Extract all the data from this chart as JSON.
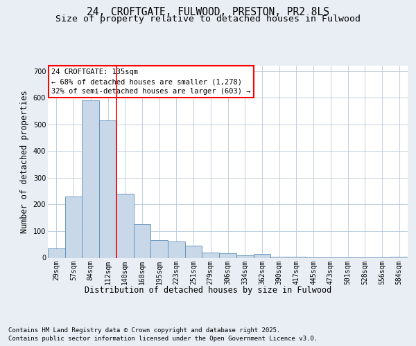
{
  "title_line1": "24, CROFTGATE, FULWOOD, PRESTON, PR2 8LS",
  "title_line2": "Size of property relative to detached houses in Fulwood",
  "xlabel": "Distribution of detached houses by size in Fulwood",
  "ylabel": "Number of detached properties",
  "bar_color": "#c8d8e8",
  "bar_edge_color": "#5b8db8",
  "vline_color": "red",
  "vline_index": 3.5,
  "annotation_title": "24 CROFTGATE: 135sqm",
  "annotation_line1": "← 68% of detached houses are smaller (1,278)",
  "annotation_line2": "32% of semi-detached houses are larger (603) →",
  "annotation_box_color": "red",
  "categories": [
    "29sqm",
    "57sqm",
    "84sqm",
    "112sqm",
    "140sqm",
    "168sqm",
    "195sqm",
    "223sqm",
    "251sqm",
    "279sqm",
    "306sqm",
    "334sqm",
    "362sqm",
    "390sqm",
    "417sqm",
    "445sqm",
    "473sqm",
    "501sqm",
    "528sqm",
    "556sqm",
    "584sqm"
  ],
  "values": [
    35,
    230,
    590,
    515,
    240,
    125,
    65,
    62,
    45,
    20,
    18,
    10,
    15,
    5,
    4,
    2,
    2,
    1,
    1,
    1,
    3
  ],
  "ylim": [
    0,
    720
  ],
  "yticks": [
    0,
    100,
    200,
    300,
    400,
    500,
    600,
    700
  ],
  "background_color": "#e8eef4",
  "plot_bg_color": "#ffffff",
  "footer_line1": "Contains HM Land Registry data © Crown copyright and database right 2025.",
  "footer_line2": "Contains public sector information licensed under the Open Government Licence v3.0.",
  "title_fontsize": 10.5,
  "subtitle_fontsize": 9.5,
  "axis_label_fontsize": 8.5,
  "tick_fontsize": 7,
  "footer_fontsize": 6.5,
  "annotation_fontsize": 7.5
}
